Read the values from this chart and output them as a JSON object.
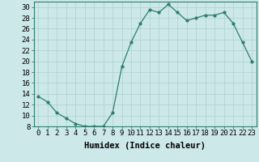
{
  "x": [
    0,
    1,
    2,
    3,
    4,
    5,
    6,
    7,
    8,
    9,
    10,
    11,
    12,
    13,
    14,
    15,
    16,
    17,
    18,
    19,
    20,
    21,
    22,
    23
  ],
  "y": [
    13.5,
    12.5,
    10.5,
    9.5,
    8.5,
    8.0,
    8.0,
    8.0,
    10.5,
    19.0,
    23.5,
    27.0,
    29.5,
    29.0,
    30.5,
    29.0,
    27.5,
    28.0,
    28.5,
    28.5,
    29.0,
    27.0,
    23.5,
    20.0
  ],
  "line_color": "#2e7d6e",
  "bg_color": "#cce8e8",
  "grid_color": "#b0d0d0",
  "xlabel": "Humidex (Indice chaleur)",
  "ylim": [
    8,
    31
  ],
  "yticks": [
    8,
    10,
    12,
    14,
    16,
    18,
    20,
    22,
    24,
    26,
    28,
    30
  ],
  "xticks": [
    0,
    1,
    2,
    3,
    4,
    5,
    6,
    7,
    8,
    9,
    10,
    11,
    12,
    13,
    14,
    15,
    16,
    17,
    18,
    19,
    20,
    21,
    22,
    23
  ],
  "xlabel_fontsize": 7.5,
  "tick_fontsize": 6.5
}
